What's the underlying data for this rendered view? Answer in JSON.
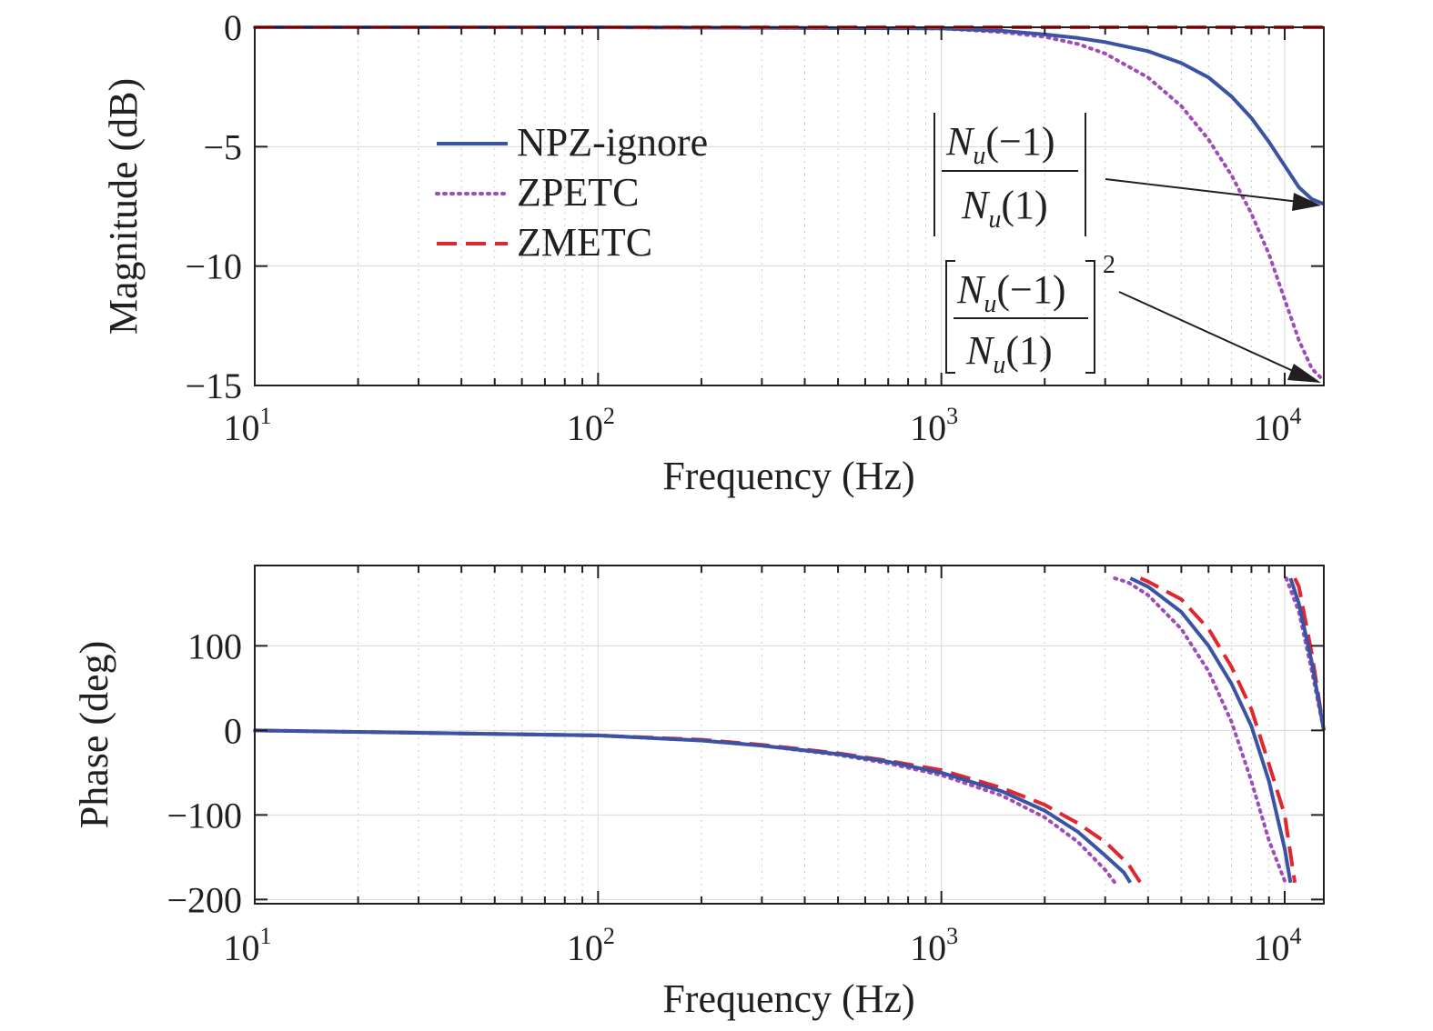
{
  "colors": {
    "npz_ignore": "#3a53a4",
    "zpetc": "#9e4db8",
    "zmetc": "#e0262f",
    "axis": "#231f20"
  },
  "legend": {
    "npz_ignore": "NPZ-ignore",
    "zpetc": "ZPETC",
    "zmetc": "ZMETC"
  },
  "annotations": {
    "mag_ratio": {
      "numerator": "(−1)",
      "denominator": "(1)",
      "symbol": "N",
      "subscript": "u"
    },
    "mag_ratio_squared": {
      "numerator": "(−1)",
      "denominator": "(1)",
      "symbol": "N",
      "subscript": "u",
      "exponent": "2"
    }
  },
  "chart_data": [
    {
      "type": "line",
      "panel": "magnitude",
      "xlabel": "Frequency (Hz)",
      "ylabel": "Magnitude (dB)",
      "xscale": "log",
      "xlim": [
        10,
        13000
      ],
      "ylim": [
        -15,
        0
      ],
      "xticks": [
        10,
        100,
        1000,
        10000
      ],
      "xtick_base": "10",
      "xtick_exps": [
        "1",
        "2",
        "3",
        "4"
      ],
      "yticks": [
        0,
        -5,
        -10,
        -15
      ],
      "yticklabels": [
        "0",
        "−5",
        "−10",
        "−15"
      ],
      "grid": true,
      "legend_position": "upper-left-center",
      "series": [
        {
          "key": "npz_ignore",
          "name": "NPZ-ignore",
          "style": "solid",
          "x": [
            10,
            100,
            1000,
            1500,
            2000,
            2500,
            3000,
            4000,
            5000,
            6000,
            7000,
            8000,
            9000,
            10000,
            11000,
            12000,
            13000
          ],
          "y": [
            0,
            0,
            -0.05,
            -0.15,
            -0.3,
            -0.45,
            -0.62,
            -1.0,
            -1.5,
            -2.1,
            -2.9,
            -3.8,
            -4.8,
            -5.8,
            -6.7,
            -7.2,
            -7.4
          ]
        },
        {
          "key": "zpetc",
          "name": "ZPETC",
          "style": "dotted",
          "x": [
            10,
            100,
            1000,
            1500,
            2000,
            2500,
            3000,
            4000,
            5000,
            6000,
            7000,
            8000,
            9000,
            10000,
            11000,
            12000,
            13000
          ],
          "y": [
            0,
            0,
            -0.05,
            -0.2,
            -0.4,
            -0.7,
            -1.1,
            -2.1,
            -3.3,
            -4.7,
            -6.2,
            -7.8,
            -9.5,
            -11.4,
            -13.1,
            -14.3,
            -14.8
          ]
        },
        {
          "key": "zmetc",
          "name": "ZMETC",
          "style": "dashed",
          "x": [
            10,
            13000
          ],
          "y": [
            0,
            0
          ]
        }
      ]
    },
    {
      "type": "line",
      "panel": "phase",
      "xlabel": "Frequency (Hz)",
      "ylabel": "Phase (deg)",
      "xscale": "log",
      "xlim": [
        10,
        13000
      ],
      "ylim": [
        -205,
        195
      ],
      "xticks": [
        10,
        100,
        1000,
        10000
      ],
      "xtick_base": "10",
      "xtick_exps": [
        "1",
        "2",
        "3",
        "4"
      ],
      "yticks": [
        100,
        0,
        -100,
        -200
      ],
      "yticklabels": [
        "100",
        "0",
        "−100",
        "−200"
      ],
      "grid": true,
      "series": [
        {
          "key": "npz_ignore",
          "name": "NPZ-ignore",
          "style": "solid",
          "x": [
            10,
            100,
            200,
            300,
            500,
            700,
            1000,
            1500,
            2000,
            2500,
            3000,
            3400,
            3550,
            3551,
            4000,
            5000,
            6000,
            7000,
            8000,
            9000,
            10000,
            10400,
            10401,
            11000,
            12000,
            13000
          ],
          "y": [
            0,
            -6,
            -12,
            -18,
            -28,
            -37,
            -50,
            -72,
            -95,
            -120,
            -148,
            -168,
            -180,
            180,
            170,
            140,
            100,
            55,
            5,
            -60,
            -140,
            -180,
            180,
            150,
            80,
            0
          ]
        },
        {
          "key": "zpetc",
          "name": "ZPETC",
          "style": "dotted",
          "x": [
            10,
            100,
            200,
            300,
            500,
            700,
            1000,
            1500,
            2000,
            2500,
            3000,
            3200,
            3201,
            3500,
            4000,
            5000,
            6000,
            7000,
            8000,
            9000,
            10000,
            10100,
            10101,
            11000,
            12000,
            13000
          ],
          "y": [
            0,
            -6,
            -12,
            -18,
            -29,
            -39,
            -53,
            -77,
            -103,
            -132,
            -165,
            -180,
            180,
            175,
            160,
            120,
            70,
            10,
            -60,
            -130,
            -178,
            -180,
            180,
            140,
            70,
            0
          ]
        },
        {
          "key": "zmetc",
          "name": "ZMETC",
          "style": "dashed",
          "x": [
            10,
            100,
            200,
            300,
            500,
            700,
            1000,
            1500,
            2000,
            2500,
            3000,
            3500,
            3800,
            3801,
            4000,
            5000,
            6000,
            7000,
            8000,
            9000,
            10000,
            10700,
            10701,
            11000,
            12000,
            13000
          ],
          "y": [
            0,
            -6,
            -11,
            -17,
            -27,
            -36,
            -47,
            -68,
            -88,
            -110,
            -132,
            -158,
            -180,
            180,
            176,
            155,
            120,
            75,
            25,
            -40,
            -100,
            -180,
            180,
            170,
            90,
            0
          ]
        }
      ]
    }
  ]
}
